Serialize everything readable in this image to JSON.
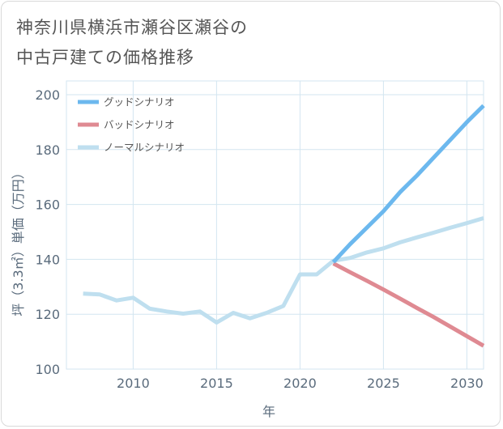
{
  "title_lines": [
    "神奈川県横浜市瀬谷区瀬谷の",
    "中古戸建ての価格推移"
  ],
  "colors": {
    "good": "#6cb8ee",
    "bad": "#df8a92",
    "normal": "#bfdfef",
    "grid": "#d3e6f0",
    "background": "#ffffff"
  },
  "chart_data": {
    "type": "line",
    "title": "神奈川県横浜市瀬谷区瀬谷の中古戸建ての価格推移",
    "xlabel": "年",
    "ylabel": "坪（3.3㎡）単価（万円）",
    "xlim": [
      2006,
      2031
    ],
    "ylim": [
      100,
      205
    ],
    "xticks": [
      2010,
      2015,
      2020,
      2025,
      2030
    ],
    "xtick_labels": [
      "2010",
      "2015",
      "2020",
      "2025",
      "2030"
    ],
    "yticks": [
      100,
      120,
      140,
      160,
      180,
      200
    ],
    "ytick_labels": [
      "100",
      "120",
      "140",
      "160",
      "180",
      "200"
    ],
    "legend_position": "top-left",
    "series": [
      {
        "name": "グッドシナリオ",
        "key": "good",
        "points": [
          [
            2022,
            139
          ],
          [
            2023,
            145.5
          ],
          [
            2024,
            151.5
          ],
          [
            2025,
            157.5
          ],
          [
            2026,
            164.5
          ],
          [
            2027,
            170.5
          ],
          [
            2028,
            177
          ],
          [
            2029,
            183.5
          ],
          [
            2030,
            190
          ],
          [
            2031,
            196
          ]
        ]
      },
      {
        "name": "バッドシナリオ",
        "key": "bad",
        "points": [
          [
            2022,
            138.5
          ],
          [
            2023,
            135.3
          ],
          [
            2024,
            132.2
          ],
          [
            2025,
            129
          ],
          [
            2026,
            125.7
          ],
          [
            2027,
            122.3
          ],
          [
            2028,
            119
          ],
          [
            2029,
            115.5
          ],
          [
            2030,
            112
          ],
          [
            2031,
            108.5
          ]
        ]
      },
      {
        "name": "ノーマルシナリオ",
        "key": "normal",
        "points": [
          [
            2007,
            127.5
          ],
          [
            2008,
            127.2
          ],
          [
            2009,
            125
          ],
          [
            2010,
            126
          ],
          [
            2011,
            122
          ],
          [
            2012,
            121
          ],
          [
            2013,
            120.2
          ],
          [
            2014,
            121
          ],
          [
            2015,
            117
          ],
          [
            2016,
            120.5
          ],
          [
            2017,
            118.5
          ],
          [
            2018,
            120.5
          ],
          [
            2019,
            123
          ],
          [
            2020,
            134.5
          ],
          [
            2021,
            134.5
          ],
          [
            2022,
            139.5
          ],
          [
            2023,
            140.5
          ],
          [
            2024,
            142.5
          ],
          [
            2025,
            144
          ],
          [
            2026,
            146.2
          ],
          [
            2027,
            148
          ],
          [
            2028,
            149.7
          ],
          [
            2029,
            151.5
          ],
          [
            2030,
            153.2
          ],
          [
            2031,
            155
          ]
        ]
      }
    ]
  }
}
